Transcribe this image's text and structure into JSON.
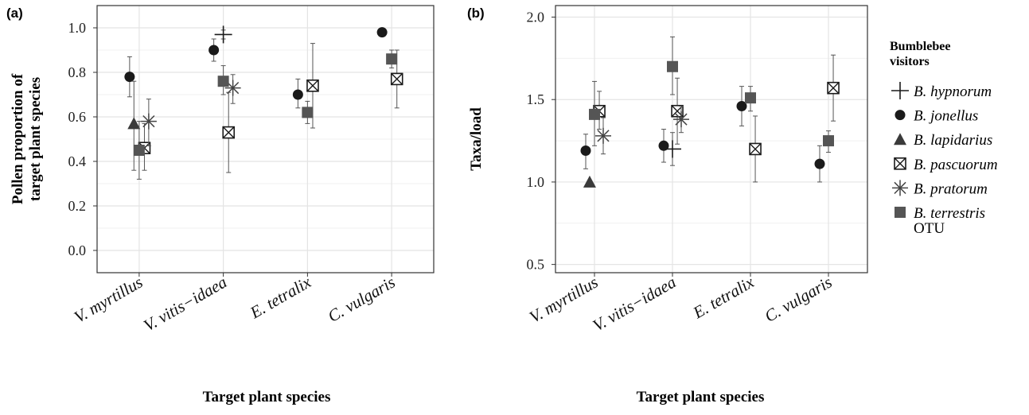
{
  "colors": {
    "marker": "#1a1a1a",
    "square_fill": "#555555",
    "grid": "#e4e4e4",
    "frame": "#333333"
  },
  "legend": {
    "title_line1": "Bumblebee",
    "title_line2": "visitors",
    "items": [
      {
        "label": "B. hypnorum",
        "marker": "plus"
      },
      {
        "label": "B. jonellus",
        "marker": "circle"
      },
      {
        "label": "B. lapidarius",
        "marker": "triangle"
      },
      {
        "label": "B. pascuorum",
        "marker": "boxx"
      },
      {
        "label": "B. pratorum",
        "marker": "star"
      },
      {
        "label": "B. terrestris",
        "marker": "square"
      }
    ],
    "extra": "OTU"
  },
  "chart_data": [
    {
      "type": "scatter",
      "panel_label": "(a)",
      "ylabel_line1": "Pollen proportion of",
      "ylabel_line2": "target plant species",
      "xlabel": "Target plant species",
      "categories": [
        "V. myrtillus",
        "V. vitis−idaea",
        "E. tetralix",
        "C. vulgaris"
      ],
      "ylim": [
        -0.1,
        1.1
      ],
      "yticks": [
        0.0,
        0.2,
        0.4,
        0.6,
        0.8,
        1.0
      ],
      "ytick_labels": [
        "0.0",
        "0.2",
        "0.4",
        "0.6",
        "0.8",
        "1.0"
      ],
      "grid": true,
      "series": [
        {
          "name": "B. hypnorum",
          "marker": "plus",
          "offset": 0,
          "points": [
            {
              "cat": 1,
              "y": 0.97,
              "lo": 0.95,
              "hi": 0.99
            }
          ]
        },
        {
          "name": "B. jonellus",
          "marker": "circle",
          "offset": -1,
          "points": [
            {
              "cat": 0,
              "y": 0.78,
              "lo": 0.69,
              "hi": 0.87
            },
            {
              "cat": 1,
              "y": 0.9,
              "lo": 0.85,
              "hi": 0.95
            },
            {
              "cat": 2,
              "y": 0.7,
              "lo": 0.64,
              "hi": 0.77
            },
            {
              "cat": 3,
              "y": 0.98,
              "lo": 0.98,
              "hi": 0.98
            }
          ]
        },
        {
          "name": "B. lapidarius",
          "marker": "triangle",
          "offset": -0.55,
          "points": [
            {
              "cat": 0,
              "y": 0.57,
              "lo": 0.36,
              "hi": 0.76
            }
          ]
        },
        {
          "name": "B. pascuorum",
          "marker": "boxx",
          "offset": 0.55,
          "points": [
            {
              "cat": 0,
              "y": 0.46,
              "lo": 0.36,
              "hi": 0.57
            },
            {
              "cat": 1,
              "y": 0.53,
              "lo": 0.35,
              "hi": 0.71
            },
            {
              "cat": 2,
              "y": 0.74,
              "lo": 0.55,
              "hi": 0.93
            },
            {
              "cat": 3,
              "y": 0.77,
              "lo": 0.64,
              "hi": 0.9
            }
          ]
        },
        {
          "name": "B. pratorum",
          "marker": "star",
          "offset": 1,
          "points": [
            {
              "cat": 0,
              "y": 0.58,
              "lo": 0.47,
              "hi": 0.68
            },
            {
              "cat": 1,
              "y": 0.73,
              "lo": 0.66,
              "hi": 0.79
            }
          ]
        },
        {
          "name": "B. terrestris",
          "marker": "square",
          "offset": 0,
          "points": [
            {
              "cat": 0,
              "y": 0.45,
              "lo": 0.32,
              "hi": 0.58
            },
            {
              "cat": 1,
              "y": 0.76,
              "lo": 0.7,
              "hi": 0.83
            },
            {
              "cat": 2,
              "y": 0.62,
              "lo": 0.57,
              "hi": 0.67
            },
            {
              "cat": 3,
              "y": 0.86,
              "lo": 0.82,
              "hi": 0.9
            }
          ]
        }
      ]
    },
    {
      "type": "scatter",
      "panel_label": "(b)",
      "ylabel_line1": "Taxa/load",
      "ylabel_line2": "",
      "xlabel": "Target plant species",
      "categories": [
        "V. myrtillus",
        "V. vitis−idaea",
        "E. tetralix",
        "C. vulgaris"
      ],
      "ylim": [
        0.45,
        2.07
      ],
      "yticks": [
        0.5,
        1.0,
        1.5,
        2.0
      ],
      "ytick_labels": [
        "0.5",
        "1.0",
        "1.5",
        "2.0"
      ],
      "grid": true,
      "series": [
        {
          "name": "B. hypnorum",
          "marker": "plus",
          "offset": 0,
          "points": [
            {
              "cat": 1,
              "y": 1.2,
              "lo": 1.1,
              "hi": 1.3
            }
          ]
        },
        {
          "name": "B. jonellus",
          "marker": "circle",
          "offset": -1,
          "points": [
            {
              "cat": 0,
              "y": 1.19,
              "lo": 1.08,
              "hi": 1.29
            },
            {
              "cat": 1,
              "y": 1.22,
              "lo": 1.12,
              "hi": 1.32
            },
            {
              "cat": 2,
              "y": 1.46,
              "lo": 1.34,
              "hi": 1.58
            },
            {
              "cat": 3,
              "y": 1.11,
              "lo": 1.0,
              "hi": 1.22
            }
          ]
        },
        {
          "name": "B. lapidarius",
          "marker": "triangle",
          "offset": -0.55,
          "points": [
            {
              "cat": 0,
              "y": 1.0,
              "lo": 1.0,
              "hi": 1.0
            }
          ]
        },
        {
          "name": "B. pascuorum",
          "marker": "boxx",
          "offset": 0.55,
          "points": [
            {
              "cat": 0,
              "y": 1.43,
              "lo": 1.32,
              "hi": 1.55
            },
            {
              "cat": 1,
              "y": 1.43,
              "lo": 1.23,
              "hi": 1.63
            },
            {
              "cat": 2,
              "y": 1.2,
              "lo": 1.0,
              "hi": 1.4
            },
            {
              "cat": 3,
              "y": 1.57,
              "lo": 1.37,
              "hi": 1.77
            }
          ]
        },
        {
          "name": "B. pratorum",
          "marker": "star",
          "offset": 1,
          "points": [
            {
              "cat": 0,
              "y": 1.28,
              "lo": 1.17,
              "hi": 1.39
            },
            {
              "cat": 1,
              "y": 1.38,
              "lo": 1.3,
              "hi": 1.46
            }
          ]
        },
        {
          "name": "B. terrestris",
          "marker": "square",
          "offset": 0,
          "points": [
            {
              "cat": 0,
              "y": 1.41,
              "lo": 1.22,
              "hi": 1.61
            },
            {
              "cat": 1,
              "y": 1.7,
              "lo": 1.53,
              "hi": 1.88
            },
            {
              "cat": 2,
              "y": 1.51,
              "lo": 1.43,
              "hi": 1.58
            },
            {
              "cat": 3,
              "y": 1.25,
              "lo": 1.18,
              "hi": 1.31
            }
          ]
        }
      ]
    }
  ]
}
